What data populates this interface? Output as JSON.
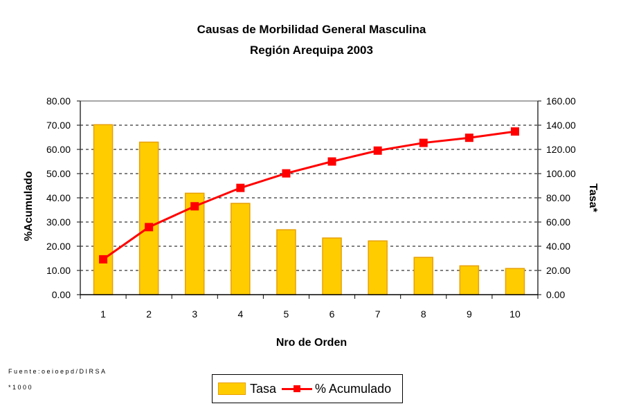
{
  "chart_data": {
    "type": "bar+line",
    "title": "Causas de Morbilidad General Masculina",
    "subtitle": "Región Arequipa 2003",
    "xlabel": "Nro de Orden",
    "ylabel_left": "%Acumulado",
    "ylabel_right": "Tasa*",
    "categories": [
      "1",
      "2",
      "3",
      "4",
      "5",
      "6",
      "7",
      "8",
      "9",
      "10"
    ],
    "ylim_left": [
      0,
      80
    ],
    "ylim_right": [
      0,
      160
    ],
    "left_ticks": [
      "0.00",
      "10.00",
      "20.00",
      "30.00",
      "40.00",
      "50.00",
      "60.00",
      "70.00",
      "80.00"
    ],
    "right_ticks": [
      "0.00",
      "20.00",
      "40.00",
      "60.00",
      "80.00",
      "100.00",
      "120.00",
      "140.00",
      "160.00"
    ],
    "grid": true,
    "legend_position": "bottom",
    "series": [
      {
        "name": "Tasa",
        "type": "bar",
        "axis": "right",
        "color": "#ffcc00",
        "values": [
          140.4,
          126.0,
          83.8,
          75.4,
          53.6,
          46.8,
          44.4,
          30.8,
          23.8,
          21.6
        ]
      },
      {
        "name": "% Acumulado",
        "type": "line",
        "axis": "left",
        "color": "#ff0000",
        "values": [
          14.6,
          27.9,
          36.5,
          44.1,
          50.1,
          55.0,
          59.5,
          62.7,
          64.8,
          67.4
        ]
      }
    ]
  },
  "footnotes": {
    "source": "Fuente:oeioepd/DIRSA",
    "unit": "*1000"
  }
}
